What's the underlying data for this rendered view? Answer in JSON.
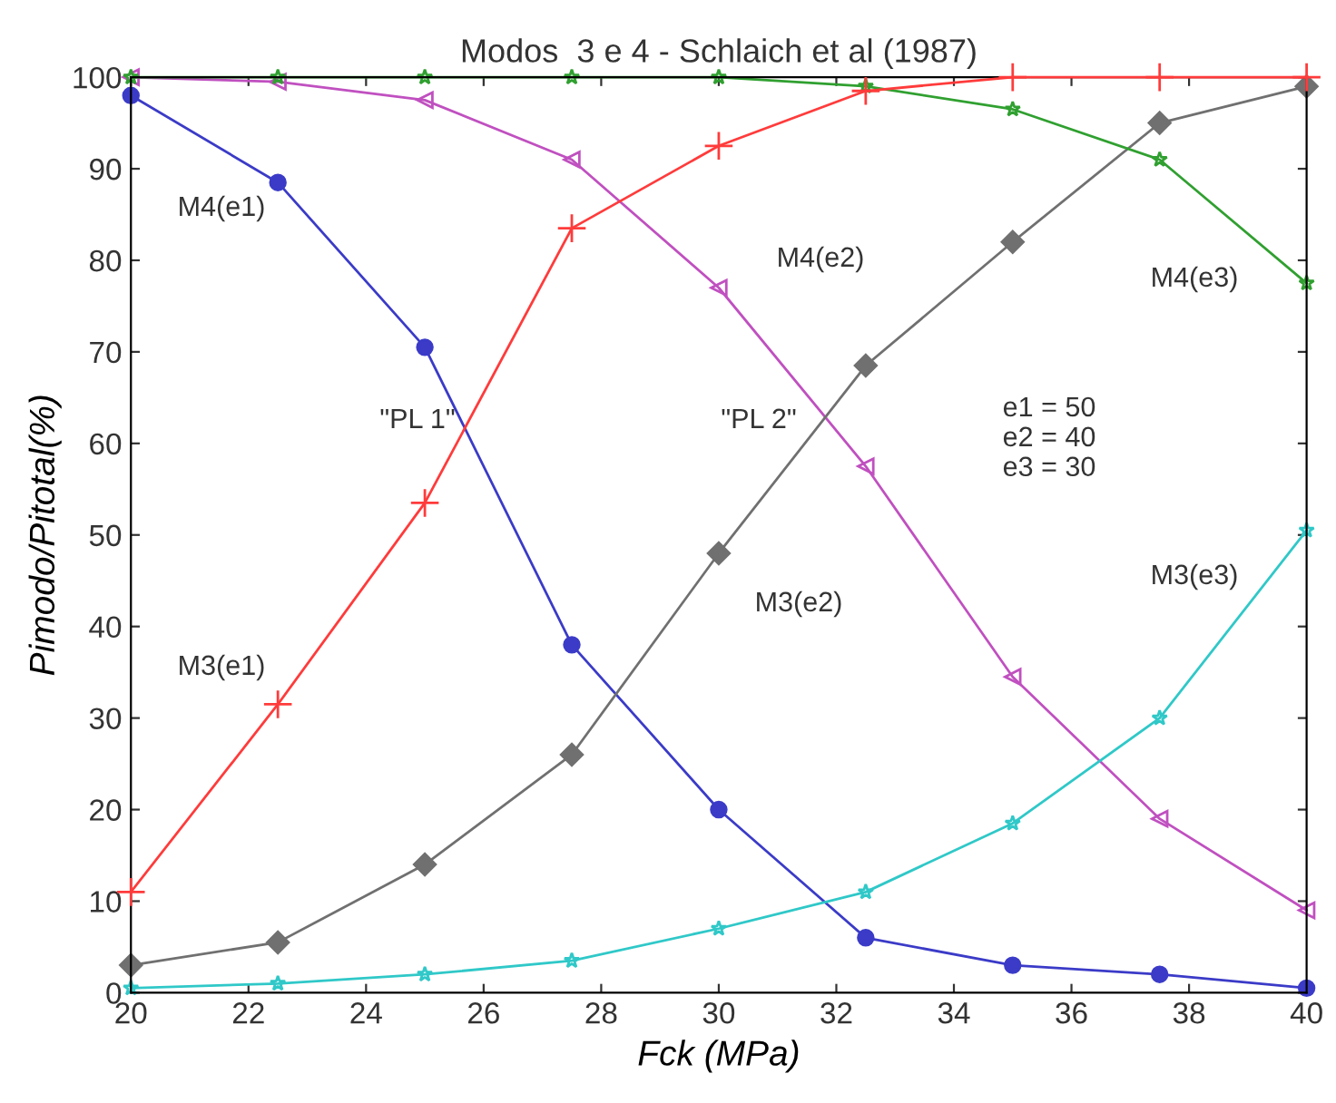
{
  "chart_data": {
    "type": "line",
    "title": "Modos  3 e 4 - Schlaich et al (1987)",
    "xlabel": "Fck (MPa)",
    "ylabel": "Pimodo/Pitotal(%)",
    "x": [
      20,
      22.5,
      25,
      27.5,
      30,
      32.5,
      35,
      37.5,
      40
    ],
    "series": [
      {
        "color": "#3b3bc8",
        "marker": "circle",
        "values": [
          98,
          88.5,
          70.5,
          38,
          20,
          6,
          3,
          2,
          0.5
        ]
      },
      {
        "color": "#ff3b3b",
        "marker": "cross",
        "values": [
          11,
          31.5,
          53.5,
          83.5,
          92.5,
          98.5,
          100,
          100,
          100
        ]
      },
      {
        "color": "#c050c0",
        "marker": "triangle",
        "values": [
          100,
          99.5,
          97.5,
          91,
          77,
          57.5,
          34.5,
          19,
          9
        ]
      },
      {
        "color": "#707070",
        "marker": "diamond",
        "values": [
          3,
          5.5,
          14,
          26,
          48,
          68.5,
          82,
          95,
          99
        ]
      },
      {
        "color": "#30a030",
        "marker": "star",
        "values": [
          100,
          100,
          100,
          100,
          100,
          99,
          96.5,
          91,
          77.5
        ]
      },
      {
        "color": "#30c8c8",
        "marker": "star",
        "values": [
          0.5,
          1,
          2,
          3.5,
          7,
          11,
          18.5,
          30,
          50.5
        ]
      }
    ],
    "xlim": [
      20,
      40
    ],
    "ylim": [
      0,
      100
    ],
    "xticks": [
      20,
      22,
      24,
      26,
      28,
      30,
      32,
      34,
      36,
      38,
      40
    ],
    "yticks": [
      0,
      10,
      20,
      30,
      40,
      50,
      60,
      70,
      80,
      90,
      100
    ],
    "grid": false,
    "legend": false,
    "annotations": [
      "M4(e1)",
      "M3(e1)",
      "\"PL 1\"",
      "\"PL 2\"",
      "M4(e2)",
      "M3(e2)",
      "M4(e3)",
      "M3(e3)",
      "e1 = 50\ne2 = 40\ne3 = 30"
    ]
  }
}
